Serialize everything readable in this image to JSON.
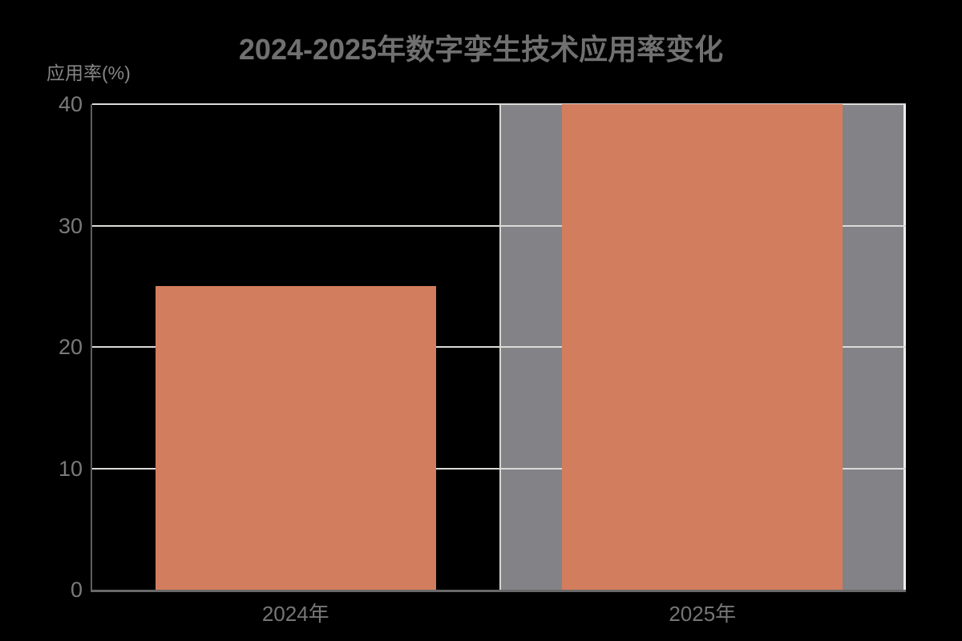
{
  "chart_data": {
    "type": "bar",
    "title": "2024-2025年数字孪生技术应用率变化",
    "ylabel": "应用率(%)",
    "xlabel": "",
    "categories": [
      "2024年",
      "2025年"
    ],
    "series": [
      {
        "name": "应用率",
        "values": [
          25,
          40
        ]
      }
    ],
    "values": [
      25,
      40
    ],
    "ylim": [
      0,
      40
    ],
    "yticks": [
      0,
      10,
      20,
      30,
      40
    ],
    "grid": true,
    "legend": false,
    "highlighted_category_index": 1,
    "colors": {
      "background": "#000000",
      "bar": "#d27d5e",
      "highlight_band": "#838287",
      "gridline": "#dcdad7",
      "y_axis_line": "#5e5e5e",
      "x_axis_line": "#696969",
      "title_text": "#707070",
      "tick_text": "#7a7a7a",
      "x_tick_text": "#767676",
      "axis_name_text": "#868686"
    }
  }
}
